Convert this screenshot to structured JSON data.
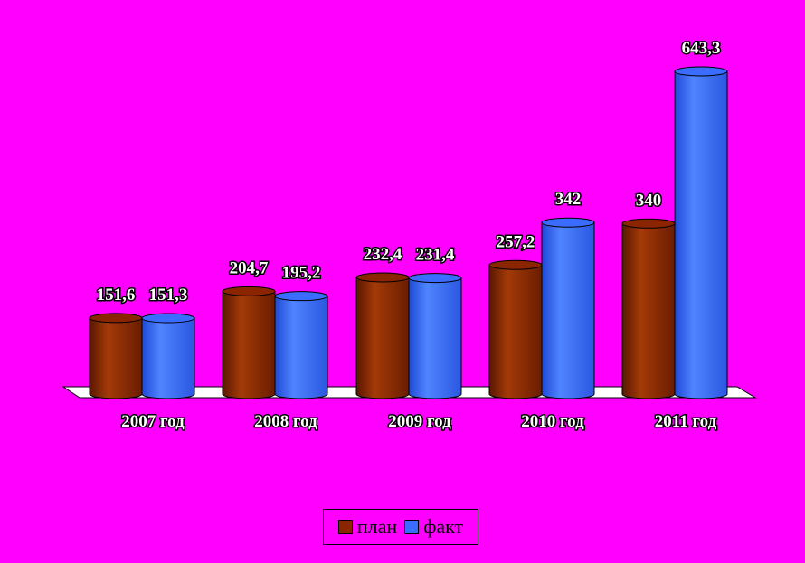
{
  "chart_data": {
    "type": "bar",
    "categories": [
      "2007  год",
      "2008  год",
      "2009  год",
      "2010  год",
      "2011 год"
    ],
    "series": [
      {
        "name": "план",
        "values": [
          151.6,
          204.7,
          232.4,
          257.2,
          340
        ],
        "labels": [
          "151,6",
          "204,7",
          "232,4",
          "257,2",
          "340"
        ],
        "color": "#8b2500"
      },
      {
        "name": "факт",
        "values": [
          151.3,
          195.2,
          231.4,
          342,
          643.3
        ],
        "labels": [
          "151,3",
          "195,2",
          "231,4",
          "342",
          "643,3"
        ],
        "color": "#3a6dff"
      }
    ],
    "ylim": [
      0,
      700
    ],
    "grid": false,
    "legend_position": "bottom"
  }
}
